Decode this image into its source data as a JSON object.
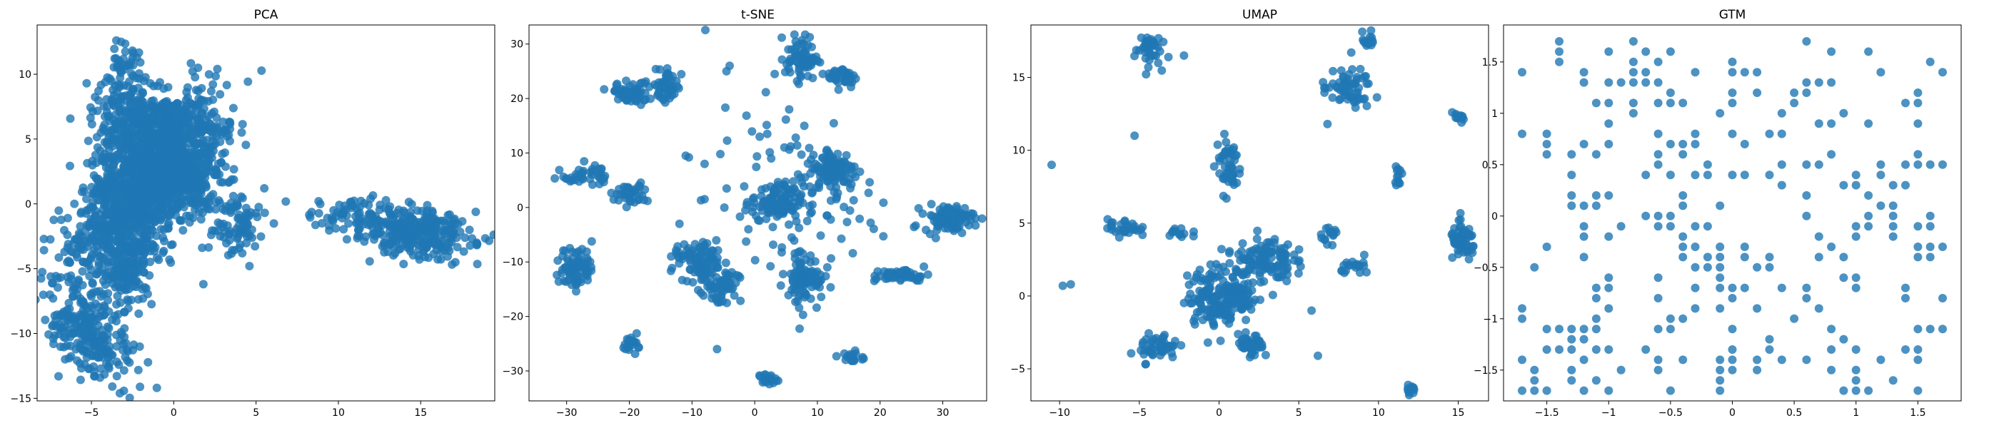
{
  "figure": {
    "marker_color": "#1f77b4"
  },
  "chart_data": [
    {
      "type": "scatter",
      "title": "PCA",
      "xlabel": "",
      "ylabel": "",
      "xlim": [
        -8.3,
        19.5
      ],
      "ylim": [
        -15.2,
        13.8
      ],
      "xticks": [
        -5,
        0,
        5,
        10,
        15
      ],
      "yticks": [
        -15,
        -10,
        -5,
        0,
        5,
        10
      ],
      "clusters": [
        {
          "cx": -1.8,
          "cy": 1.0,
          "sx": 1.5,
          "sy": 3.5,
          "n": 1400,
          "rot": -0.5
        },
        {
          "cx": -2.6,
          "cy": 6.0,
          "sx": 1.2,
          "sy": 2.2,
          "n": 260,
          "rot": 0
        },
        {
          "cx": -0.5,
          "cy": 6.0,
          "sx": 1.5,
          "sy": 1.2,
          "n": 180,
          "rot": 0
        },
        {
          "cx": 0.9,
          "cy": 2.0,
          "sx": 1.0,
          "sy": 1.2,
          "n": 120,
          "rot": 0
        },
        {
          "cx": 3.5,
          "cy": -1.5,
          "sx": 1.0,
          "sy": 1.4,
          "n": 90,
          "rot": 0
        },
        {
          "cx": -5.0,
          "cy": -10.0,
          "sx": 1.0,
          "sy": 2.0,
          "n": 260,
          "rot": 0.5
        },
        {
          "cx": -2.8,
          "cy": -5.0,
          "sx": 0.8,
          "sy": 1.5,
          "n": 120,
          "rot": 0
        },
        {
          "cx": 14.5,
          "cy": -2.2,
          "sx": 1.8,
          "sy": 0.9,
          "n": 280,
          "rot": -0.1
        },
        {
          "cx": 11.0,
          "cy": -0.8,
          "sx": 1.2,
          "sy": 0.7,
          "n": 60,
          "rot": 0
        },
        {
          "cx": -2.9,
          "cy": 11.0,
          "sx": 0.5,
          "sy": 0.7,
          "n": 25,
          "rot": 0
        }
      ],
      "points": [
        [
          9.0,
          -1.5
        ],
        [
          8.8,
          0.2
        ],
        [
          18.4,
          -3.0
        ],
        [
          -7.0,
          -13.3
        ],
        [
          -3.2,
          12.5
        ],
        [
          1.8,
          -6.2
        ],
        [
          4.6,
          -4.8
        ],
        [
          5.5,
          1.2
        ]
      ]
    },
    {
      "type": "scatter",
      "title": "t-SNE",
      "xlabel": "",
      "ylabel": "",
      "xlim": [
        -36,
        37
      ],
      "ylim": [
        -35.5,
        33.5
      ],
      "xticks": [
        -30,
        -20,
        -10,
        0,
        10,
        20,
        30
      ],
      "yticks": [
        -30,
        -20,
        -10,
        0,
        10,
        20,
        30
      ],
      "clusters": [
        {
          "cx": -28.5,
          "cy": -11.0,
          "sx": 1.3,
          "sy": 2.0,
          "n": 80,
          "rot": 0
        },
        {
          "cx": -27.0,
          "cy": 6.0,
          "sx": 1.8,
          "sy": 1.0,
          "n": 40,
          "rot": 0
        },
        {
          "cx": -19.0,
          "cy": 21.0,
          "sx": 2.0,
          "sy": 1.0,
          "n": 60,
          "rot": 0
        },
        {
          "cx": -14.0,
          "cy": 22.5,
          "sx": 1.2,
          "sy": 1.5,
          "n": 50,
          "rot": 0
        },
        {
          "cx": -20.0,
          "cy": 2.5,
          "sx": 1.5,
          "sy": 1.0,
          "n": 40,
          "rot": 0
        },
        {
          "cx": -19.5,
          "cy": -25.0,
          "sx": 0.8,
          "sy": 0.8,
          "n": 20,
          "rot": 0
        },
        {
          "cx": -9.0,
          "cy": -10.0,
          "sx": 2.0,
          "sy": 1.8,
          "n": 90,
          "rot": 0
        },
        {
          "cx": -5.5,
          "cy": -15.0,
          "sx": 1.5,
          "sy": 2.0,
          "n": 60,
          "rot": 0
        },
        {
          "cx": 3.5,
          "cy": 1.0,
          "sx": 2.0,
          "sy": 1.8,
          "n": 110,
          "rot": 0
        },
        {
          "cx": 7.5,
          "cy": 27.5,
          "sx": 1.3,
          "sy": 2.0,
          "n": 70,
          "rot": 0
        },
        {
          "cx": 14.0,
          "cy": 24.0,
          "sx": 1.2,
          "sy": 1.0,
          "n": 40,
          "rot": 0
        },
        {
          "cx": 12.5,
          "cy": 7.0,
          "sx": 2.0,
          "sy": 2.0,
          "n": 100,
          "rot": 0
        },
        {
          "cx": 8.0,
          "cy": -13.0,
          "sx": 1.5,
          "sy": 2.0,
          "n": 90,
          "rot": 0
        },
        {
          "cx": 31.0,
          "cy": -2.0,
          "sx": 2.0,
          "sy": 1.2,
          "n": 90,
          "rot": 0
        },
        {
          "cx": 23.5,
          "cy": -12.5,
          "sx": 2.2,
          "sy": 0.6,
          "n": 50,
          "rot": 0
        },
        {
          "cx": 15.5,
          "cy": -27.5,
          "sx": 1.0,
          "sy": 0.6,
          "n": 20,
          "rot": 0
        },
        {
          "cx": 2.0,
          "cy": -31.5,
          "sx": 0.7,
          "sy": 0.5,
          "n": 20,
          "rot": 0
        },
        {
          "cx": 6.0,
          "cy": 0.5,
          "sx": 7.0,
          "sy": 9.0,
          "n": 90,
          "rot": 0
        }
      ],
      "points": [
        [
          -4.0,
          26.0
        ],
        [
          -4.5,
          25.0
        ],
        [
          2.0,
          13.5
        ],
        [
          0.8,
          13.0
        ],
        [
          -12.0,
          -3.0
        ],
        [
          -8.0,
          8.0
        ],
        [
          5.5,
          18.0
        ],
        [
          -6.0,
          -26.0
        ],
        [
          -1.0,
          -4.0
        ],
        [
          -11.0,
          9.5
        ],
        [
          -10.5,
          9.2
        ]
      ]
    },
    {
      "type": "scatter",
      "title": "UMAP",
      "xlabel": "",
      "ylabel": "",
      "xlim": [
        -11.8,
        16.9
      ],
      "ylim": [
        -7.2,
        18.6
      ],
      "xticks": [
        -10,
        -5,
        0,
        5,
        10,
        15
      ],
      "yticks": [
        -5,
        0,
        5,
        10,
        15
      ],
      "clusters": [
        {
          "cx": -4.5,
          "cy": 17.0,
          "sx": 0.4,
          "sy": 0.6,
          "n": 40,
          "rot": 0
        },
        {
          "cx": 0.6,
          "cy": 9.0,
          "sx": 0.4,
          "sy": 1.0,
          "n": 50,
          "rot": 0
        },
        {
          "cx": 8.0,
          "cy": 14.2,
          "sx": 0.8,
          "sy": 0.7,
          "n": 60,
          "rot": 0
        },
        {
          "cx": 9.4,
          "cy": 17.5,
          "sx": 0.2,
          "sy": 0.3,
          "n": 15,
          "rot": 0
        },
        {
          "cx": -6.0,
          "cy": 4.7,
          "sx": 0.5,
          "sy": 0.3,
          "n": 30,
          "rot": 0
        },
        {
          "cx": 0.0,
          "cy": 0.0,
          "sx": 1.0,
          "sy": 1.0,
          "n": 160,
          "rot": 0
        },
        {
          "cx": 2.8,
          "cy": 2.5,
          "sx": 0.9,
          "sy": 0.8,
          "n": 120,
          "rot": 0
        },
        {
          "cx": 1.3,
          "cy": 0.0,
          "sx": 0.6,
          "sy": 0.8,
          "n": 40,
          "rot": 0
        },
        {
          "cx": 2.0,
          "cy": -3.5,
          "sx": 0.4,
          "sy": 0.4,
          "n": 40,
          "rot": 0
        },
        {
          "cx": -3.8,
          "cy": -3.5,
          "sx": 0.6,
          "sy": 0.5,
          "n": 50,
          "rot": 0
        },
        {
          "cx": 7.0,
          "cy": 4.3,
          "sx": 0.3,
          "sy": 0.3,
          "n": 15,
          "rot": 0
        },
        {
          "cx": 8.7,
          "cy": 2.0,
          "sx": 0.5,
          "sy": 0.3,
          "n": 20,
          "rot": 0
        },
        {
          "cx": 11.2,
          "cy": 8.1,
          "sx": 0.3,
          "sy": 0.3,
          "n": 12,
          "rot": 0
        },
        {
          "cx": 15.3,
          "cy": 3.7,
          "sx": 0.4,
          "sy": 0.6,
          "n": 60,
          "rot": 0
        },
        {
          "cx": 15.0,
          "cy": 12.2,
          "sx": 0.3,
          "sy": 0.2,
          "n": 12,
          "rot": 0
        },
        {
          "cx": 12.0,
          "cy": -6.6,
          "sx": 0.2,
          "sy": 0.3,
          "n": 10,
          "rot": 0
        },
        {
          "cx": -2.5,
          "cy": 4.3,
          "sx": 0.4,
          "sy": 0.3,
          "n": 12,
          "rot": 0
        }
      ],
      "points": [
        [
          -10.5,
          9.0
        ],
        [
          -9.3,
          0.8
        ],
        [
          -9.8,
          0.7
        ],
        [
          -5.3,
          11.0
        ],
        [
          -2.2,
          16.5
        ],
        [
          6.2,
          -4.1
        ],
        [
          5.8,
          -1.0
        ],
        [
          6.8,
          11.8
        ],
        [
          -1.5,
          -1.5
        ],
        [
          -0.7,
          -3.2
        ],
        [
          -1.6,
          1.0
        ]
      ]
    },
    {
      "type": "scatter",
      "title": "GTM",
      "xlabel": "",
      "ylabel": "",
      "xlim": [
        -1.85,
        1.85
      ],
      "ylim": [
        -1.8,
        1.86
      ],
      "xticks": [
        -1.5,
        -1.0,
        -0.5,
        0.0,
        0.5,
        1.0,
        1.5
      ],
      "yticks": [
        -1.5,
        -1.0,
        -0.5,
        0.0,
        0.5,
        1.0,
        1.5
      ],
      "grid_min": -1.7,
      "grid_max": 1.7,
      "grid_steps": 34,
      "density": [
        {
          "cx": -1.2,
          "cy": -1.2,
          "r": 0.45,
          "p": 0.55
        },
        {
          "cx": 1.3,
          "cy": 0.0,
          "r": 0.45,
          "p": 0.55
        },
        {
          "cx": -0.7,
          "cy": 1.3,
          "r": 0.45,
          "p": 0.5
        },
        {
          "cx": 0.5,
          "cy": 1.2,
          "r": 0.35,
          "p": 0.5
        },
        {
          "cx": -0.1,
          "cy": -0.6,
          "r": 0.5,
          "p": 0.45
        },
        {
          "cx": -1.2,
          "cy": 0.0,
          "r": 0.35,
          "p": 0.45
        },
        {
          "cx": 0.7,
          "cy": -0.3,
          "r": 0.3,
          "p": 0.45
        }
      ],
      "base_p": 0.17
    }
  ]
}
